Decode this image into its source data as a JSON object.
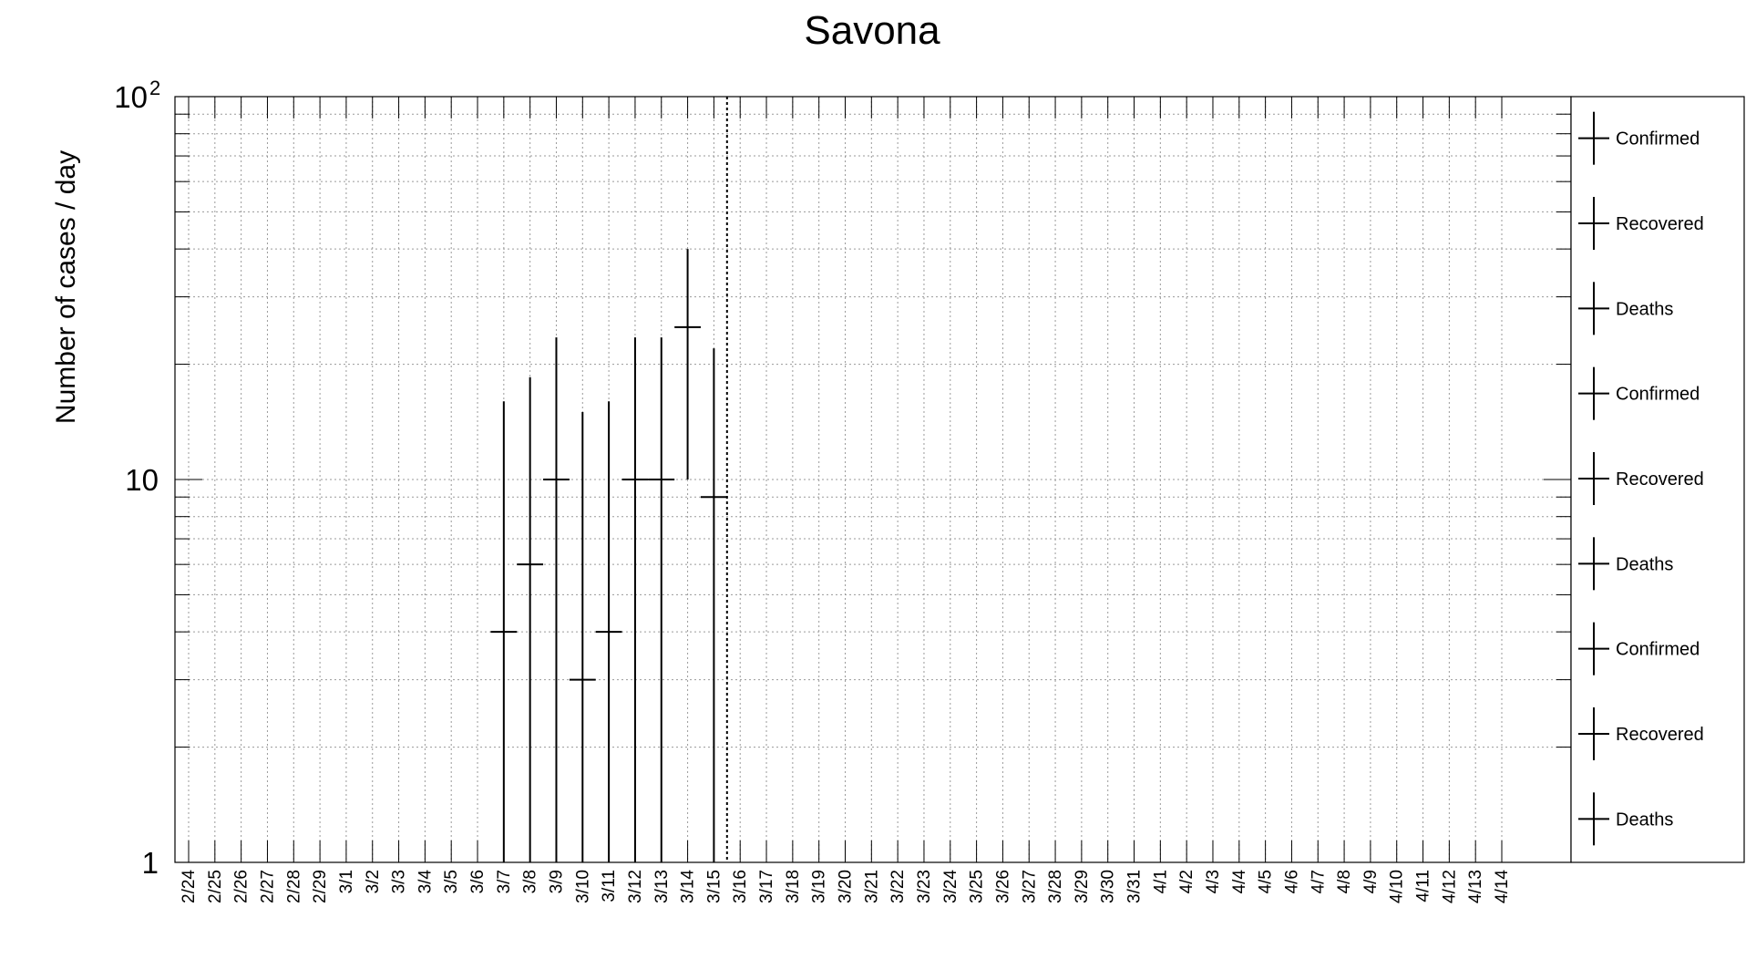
{
  "chart_data": {
    "type": "scatter",
    "title": "Savona",
    "ylabel": "Number of cases / day",
    "xlabel": "",
    "y_scale": "log",
    "ylim": [
      1,
      100
    ],
    "y_ticks": [
      {
        "value": 1,
        "label": "1"
      },
      {
        "value": 10,
        "label": "10"
      },
      {
        "value": 100,
        "label": "10",
        "exponent": "2"
      }
    ],
    "grid": true,
    "categories": [
      "2/24",
      "2/25",
      "2/26",
      "2/27",
      "2/28",
      "2/29",
      "3/1",
      "3/2",
      "3/3",
      "3/4",
      "3/5",
      "3/6",
      "3/7",
      "3/8",
      "3/9",
      "3/10",
      "3/11",
      "3/12",
      "3/13",
      "3/14",
      "3/15",
      "3/16",
      "3/17",
      "3/18",
      "3/19",
      "3/20",
      "3/21",
      "3/22",
      "3/23",
      "3/24",
      "3/25",
      "3/26",
      "3/27",
      "3/28",
      "3/29",
      "3/30",
      "3/31",
      "4/1",
      "4/2",
      "4/3",
      "4/4",
      "4/5",
      "4/6",
      "4/7",
      "4/8",
      "4/9",
      "4/10",
      "4/11",
      "4/12",
      "4/13",
      "4/14"
    ],
    "marker_line_after": "3/15",
    "points": [
      {
        "x": "3/7",
        "y": 4,
        "y_low": 1,
        "y_high": 16
      },
      {
        "x": "3/8",
        "y": 6,
        "y_low": 1,
        "y_high": 18.5
      },
      {
        "x": "3/9",
        "y": 10,
        "y_low": 1,
        "y_high": 23.5
      },
      {
        "x": "3/10",
        "y": 3,
        "y_low": 1,
        "y_high": 15
      },
      {
        "x": "3/11",
        "y": 4,
        "y_low": 1,
        "y_high": 16
      },
      {
        "x": "3/12",
        "y": 10,
        "y_low": 1,
        "y_high": 23.5
      },
      {
        "x": "3/13",
        "y": 10,
        "y_low": 1,
        "y_high": 23.5
      },
      {
        "x": "3/14",
        "y": 25,
        "y_low": 10,
        "y_high": 40
      },
      {
        "x": "3/15",
        "y": 9,
        "y_low": 1,
        "y_high": 22
      }
    ],
    "legend_position": "right",
    "legend": [
      "Confirmed",
      "Recovered",
      "Deaths",
      "Confirmed",
      "Recovered",
      "Deaths",
      "Confirmed",
      "Recovered",
      "Deaths"
    ]
  }
}
